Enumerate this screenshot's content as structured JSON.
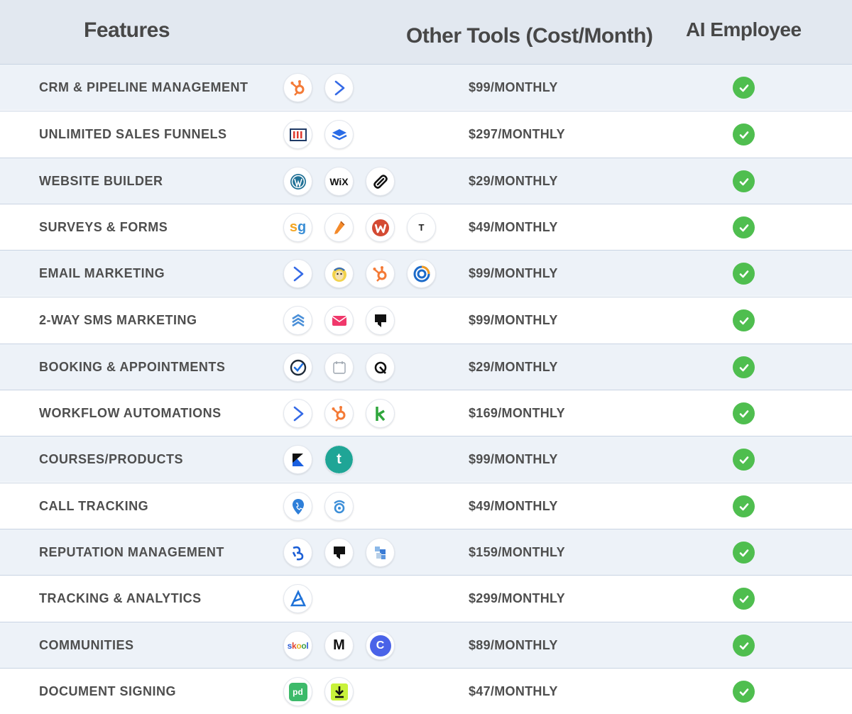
{
  "header": {
    "features": "Features",
    "other_tools": "Other Tools (Cost/Month)",
    "ai_employee": "AI Employee"
  },
  "colors": {
    "header_bg": "#e2e8f0",
    "row_alt_bg": "#edf2f8",
    "check_green": "#4fbe4f"
  },
  "rows": [
    {
      "feature": "CRM & PIPELINE MANAGEMENT",
      "cost": "$99/MONTHLY",
      "icons": [
        "hubspot-icon",
        "activecampaign-icon"
      ]
    },
    {
      "feature": "UNLIMITED SALES FUNNELS",
      "cost": "$297/MONTHLY",
      "icons": [
        "clickfunnels-icon",
        "leadpages-icon"
      ]
    },
    {
      "feature": "WEBSITE BUILDER",
      "cost": "$29/MONTHLY",
      "icons": [
        "wordpress-icon",
        "wix-icon",
        "squarespace-icon"
      ]
    },
    {
      "feature": "SURVEYS & FORMS",
      "cost": "$49/MONTHLY",
      "icons": [
        "surveygizmo-icon",
        "jotform-icon",
        "wufoo-icon",
        "typeform-icon"
      ]
    },
    {
      "feature": "EMAIL MARKETING",
      "cost": "$99/MONTHLY",
      "icons": [
        "activecampaign-icon",
        "mailchimp-icon",
        "hubspot-icon",
        "constantcontact-icon"
      ]
    },
    {
      "feature": "2-WAY SMS MARKETING",
      "cost": "$99/MONTHLY",
      "icons": [
        "textmagic-icon",
        "simpletexting-icon",
        "podium-icon"
      ]
    },
    {
      "feature": "BOOKING & APPOINTMENTS",
      "cost": "$29/MONTHLY",
      "icons": [
        "calendly-icon",
        "calendar-icon",
        "acuity-icon"
      ]
    },
    {
      "feature": "WORKFLOW AUTOMATIONS",
      "cost": "$169/MONTHLY",
      "icons": [
        "activecampaign-icon",
        "hubspot-icon",
        "keap-icon"
      ]
    },
    {
      "feature": "COURSES/PRODUCTS",
      "cost": "$99/MONTHLY",
      "icons": [
        "kajabi-icon",
        "teachable-icon"
      ]
    },
    {
      "feature": "CALL TRACKING",
      "cost": "$49/MONTHLY",
      "icons": [
        "calltrackingmetrics-icon",
        "callrail-icon"
      ]
    },
    {
      "feature": "REPUTATION MANAGEMENT",
      "cost": "$159/MONTHLY",
      "icons": [
        "birdeye-icon",
        "podium-icon",
        "reputation-icon"
      ]
    },
    {
      "feature": "TRACKING & ANALYTICS",
      "cost": "$299/MONTHLY",
      "icons": [
        "analytics-icon"
      ]
    },
    {
      "feature": "COMMUNITIES",
      "cost": "$89/MONTHLY",
      "icons": [
        "skool-icon",
        "mighty-networks-icon",
        "circle-icon"
      ]
    },
    {
      "feature": "DOCUMENT SIGNING",
      "cost": "$47/MONTHLY",
      "icons": [
        "pandadoc-icon",
        "download-sign-icon"
      ]
    }
  ],
  "icon_text": {
    "wix": "WiX",
    "skool": "skool",
    "typeform": "T",
    "mighty": "M",
    "circle": "C",
    "teachable": "t",
    "pandadoc": "pd"
  }
}
